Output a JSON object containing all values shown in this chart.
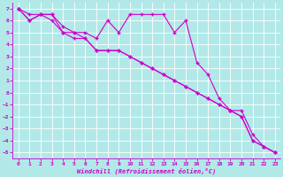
{
  "bg_color": "#b2e8e8",
  "grid_color": "#ffffff",
  "line_color": "#cc00cc",
  "xlim": [
    -0.5,
    23.5
  ],
  "ylim": [
    -5.5,
    7.5
  ],
  "xticks": [
    0,
    1,
    2,
    3,
    4,
    5,
    6,
    7,
    8,
    9,
    10,
    11,
    12,
    13,
    14,
    15,
    16,
    17,
    18,
    19,
    20,
    21,
    22,
    23
  ],
  "yticks": [
    -5,
    -4,
    -3,
    -2,
    -1,
    0,
    1,
    2,
    3,
    4,
    5,
    6,
    7
  ],
  "xlabel": "Windchill (Refroidissement éolien,°C)",
  "line1_x": [
    0,
    1,
    2,
    3,
    4,
    5,
    6,
    7,
    8,
    9,
    10,
    11,
    12,
    13,
    14,
    15,
    16,
    17,
    18,
    19,
    20,
    21,
    22,
    23
  ],
  "line1_y": [
    7.0,
    6.5,
    6.5,
    6.5,
    5.5,
    5.0,
    4.5,
    3.5,
    3.5,
    3.5,
    3.0,
    2.5,
    2.0,
    1.5,
    1.0,
    0.5,
    0.0,
    -0.5,
    -1.0,
    -1.5,
    -2.0,
    -4.0,
    -4.5,
    -5.0
  ],
  "line2_x": [
    0,
    1,
    2,
    3,
    4,
    5,
    6,
    7,
    8,
    9,
    10,
    11,
    12,
    13,
    14,
    15,
    16,
    17,
    18,
    19,
    20,
    21,
    22,
    23
  ],
  "line2_y": [
    7.0,
    6.0,
    6.5,
    6.5,
    5.0,
    5.0,
    5.0,
    4.5,
    6.0,
    5.0,
    6.5,
    6.5,
    6.5,
    6.5,
    5.0,
    6.0,
    2.5,
    1.5,
    -0.5,
    -1.5,
    -1.5,
    -3.5,
    -4.5,
    -5.0
  ],
  "line3_x": [
    0,
    1,
    2,
    3,
    4,
    5,
    6,
    7,
    8,
    9,
    10,
    11,
    12,
    13,
    14,
    15,
    16,
    17,
    18,
    19,
    20,
    21,
    22,
    23
  ],
  "line3_y": [
    7.0,
    6.0,
    6.5,
    6.0,
    5.0,
    4.5,
    4.5,
    3.5,
    3.5,
    3.5,
    3.0,
    2.5,
    2.0,
    1.5,
    1.0,
    0.5,
    0.0,
    -0.5,
    -1.0,
    -1.5,
    -2.0,
    -4.0,
    -4.5,
    -5.0
  ],
  "marker": "+",
  "marker_size": 3,
  "linewidth": 0.8,
  "tick_labelsize": 4.5,
  "xlabel_fontsize": 5.0
}
